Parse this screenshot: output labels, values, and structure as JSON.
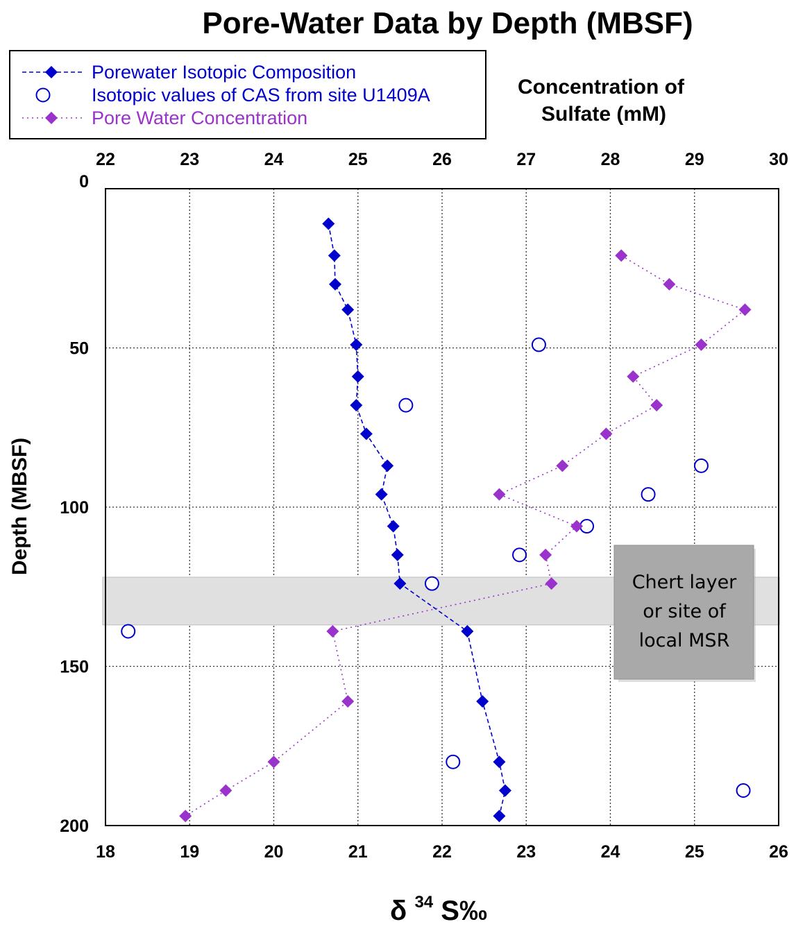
{
  "chart_data": {
    "type": "scatter",
    "title": "Pore-Water Data by Depth (MBSF)",
    "top_axis": {
      "label_line1": "Concentration of",
      "label_line2": "Sulfate (mM)",
      "range": [
        22,
        30
      ],
      "ticks": [
        "22",
        "23",
        "24",
        "25",
        "26",
        "27",
        "28",
        "29",
        "30"
      ]
    },
    "bottom_axis": {
      "label_main": "δ",
      "label_sup": "34",
      "label_rest": "S‰",
      "range": [
        18,
        26
      ],
      "ticks": [
        "18",
        "19",
        "20",
        "21",
        "22",
        "23",
        "24",
        "25",
        "26"
      ]
    },
    "y_axis": {
      "label": "Depth (MBSF)",
      "range": [
        0,
        200
      ],
      "inverted": true,
      "ticks": [
        "0",
        "50",
        "100",
        "150",
        "200"
      ]
    },
    "grid": true,
    "legend_position": "top-left",
    "series": [
      {
        "name": "Porewater Isotopic Composition",
        "axis": "bottom",
        "style": "dashed-line-diamond",
        "color": "#0000CC",
        "points": [
          {
            "x": 20.65,
            "depth": 11
          },
          {
            "x": 20.72,
            "depth": 21
          },
          {
            "x": 20.73,
            "depth": 30
          },
          {
            "x": 20.88,
            "depth": 38
          },
          {
            "x": 20.98,
            "depth": 49
          },
          {
            "x": 21.0,
            "depth": 59
          },
          {
            "x": 20.98,
            "depth": 68
          },
          {
            "x": 21.1,
            "depth": 77
          },
          {
            "x": 21.35,
            "depth": 87
          },
          {
            "x": 21.28,
            "depth": 96
          },
          {
            "x": 21.42,
            "depth": 106
          },
          {
            "x": 21.47,
            "depth": 115
          },
          {
            "x": 21.5,
            "depth": 124
          },
          {
            "x": 22.3,
            "depth": 139
          },
          {
            "x": 22.48,
            "depth": 161
          },
          {
            "x": 22.68,
            "depth": 180
          },
          {
            "x": 22.75,
            "depth": 189
          },
          {
            "x": 22.68,
            "depth": 197
          }
        ]
      },
      {
        "name": "Isotopic values of CAS from site U1409A",
        "axis": "bottom",
        "style": "open-circle",
        "color": "#0000CC",
        "points": [
          {
            "x": 23.15,
            "depth": 49
          },
          {
            "x": 21.57,
            "depth": 68
          },
          {
            "x": 25.08,
            "depth": 87
          },
          {
            "x": 24.45,
            "depth": 96
          },
          {
            "x": 23.72,
            "depth": 106
          },
          {
            "x": 22.92,
            "depth": 115
          },
          {
            "x": 21.88,
            "depth": 124
          },
          {
            "x": 18.27,
            "depth": 139
          },
          {
            "x": 22.13,
            "depth": 180
          },
          {
            "x": 25.58,
            "depth": 189
          }
        ]
      },
      {
        "name": "Pore Water Concentration",
        "axis": "top",
        "style": "dotted-line-diamond",
        "color": "#9933CC",
        "points": [
          {
            "x": 28.13,
            "depth": 21
          },
          {
            "x": 28.7,
            "depth": 30
          },
          {
            "x": 29.6,
            "depth": 38
          },
          {
            "x": 29.08,
            "depth": 49
          },
          {
            "x": 28.27,
            "depth": 59
          },
          {
            "x": 28.55,
            "depth": 68
          },
          {
            "x": 27.95,
            "depth": 77
          },
          {
            "x": 27.43,
            "depth": 87
          },
          {
            "x": 26.68,
            "depth": 96
          },
          {
            "x": 27.6,
            "depth": 106
          },
          {
            "x": 27.23,
            "depth": 115
          },
          {
            "x": 27.3,
            "depth": 124
          },
          {
            "x": 24.7,
            "depth": 139
          },
          {
            "x": 24.88,
            "depth": 161
          },
          {
            "x": 24.0,
            "depth": 180
          },
          {
            "x": 23.43,
            "depth": 189
          },
          {
            "x": 22.95,
            "depth": 197
          }
        ]
      }
    ],
    "annotations": [
      {
        "type": "band",
        "label": "",
        "depth_range": [
          122,
          137
        ]
      },
      {
        "type": "note",
        "label_lines": [
          "Chert layer",
          "or site of",
          "local MSR"
        ]
      }
    ],
    "colors": {
      "isotope_blue": "#0000CC",
      "concentration_purple": "#9933CC",
      "band_fill": "#E0E0E0",
      "note_fill": "#A9A9A9"
    }
  }
}
